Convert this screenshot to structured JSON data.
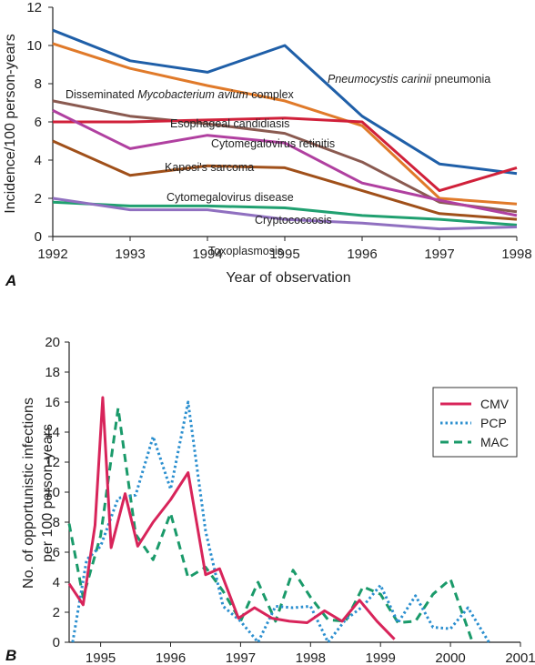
{
  "chart_data": [
    {
      "panel": "A",
      "type": "line",
      "xlabel": "Year of observation",
      "ylabel": "Incidence/100 person-years",
      "xlim": [
        1992,
        1998
      ],
      "ylim": [
        0,
        12
      ],
      "x": [
        1992,
        1993,
        1994,
        1995,
        1996,
        1997,
        1998
      ],
      "series": [
        {
          "name": "Pneumocystis carinii pneumonia",
          "color": "#1f5fa8",
          "values": [
            10.8,
            9.2,
            8.6,
            10.0,
            6.3,
            3.8,
            3.3
          ]
        },
        {
          "name": "Disseminated Mycobacterium avium complex",
          "color": "#e07a2a",
          "values": [
            10.1,
            8.8,
            7.9,
            7.1,
            5.8,
            2.0,
            1.7
          ]
        },
        {
          "name": "Esophageal candidiasis",
          "color": "#8a5a50",
          "values": [
            7.1,
            6.3,
            5.9,
            5.4,
            3.9,
            1.8,
            1.3
          ]
        },
        {
          "name": "Cytomegalovirus retinitis",
          "color": "#d0203a",
          "values": [
            6.0,
            6.0,
            6.1,
            6.2,
            6.0,
            2.4,
            3.6
          ]
        },
        {
          "name": "Kaposi's sarcoma",
          "color": "#b040a0",
          "values": [
            6.6,
            4.6,
            5.3,
            4.9,
            2.8,
            1.9,
            1.1
          ]
        },
        {
          "name": "Cytomegalovirus disease",
          "color": "#a0501a",
          "values": [
            5.0,
            3.2,
            3.7,
            3.6,
            2.4,
            1.2,
            0.9
          ]
        },
        {
          "name": "Cryptococcosis",
          "color": "#20a070",
          "values": [
            1.8,
            1.6,
            1.6,
            1.5,
            1.1,
            0.9,
            0.6
          ]
        },
        {
          "name": "Toxoplasmosis",
          "color": "#9070c0",
          "values": [
            2.0,
            1.4,
            1.4,
            0.9,
            0.7,
            0.4,
            0.5
          ]
        }
      ],
      "annotations": [
        {
          "text": "Pneumocystis carinii pneumonia",
          "italic_part": "Pneumocystis carinii"
        },
        {
          "text": "Disseminated Mycobacterium avium complex",
          "italic_part": "Mycobacterium avium"
        },
        {
          "text": "Esophageal candidiasis"
        },
        {
          "text": "Cytomegalovirus retinitis"
        },
        {
          "text": "Kaposi's sarcoma"
        },
        {
          "text": "Cytomegalovirus disease"
        },
        {
          "text": "Cryptococcosis"
        },
        {
          "text": "Toxoplasmosis"
        }
      ],
      "xticks": [
        "1992",
        "1993",
        "1994",
        "1995",
        "1996",
        "1997",
        "1998"
      ],
      "yticks": [
        "0",
        "2",
        "4",
        "6",
        "8",
        "10",
        "12"
      ],
      "grid": false
    },
    {
      "panel": "B",
      "type": "line",
      "xlabel": "",
      "ylabel_lines": [
        "No. of opportunistic infections",
        "per 100 person-years"
      ],
      "xlim": [
        1994.55,
        2001
      ],
      "ylim": [
        0,
        20
      ],
      "xticks": [
        "1995",
        "1996",
        "1997",
        "1998",
        "1999",
        "2000",
        "2001"
      ],
      "yticks": [
        "0",
        "2",
        "4",
        "6",
        "8",
        "10",
        "12",
        "14",
        "16",
        "18",
        "20"
      ],
      "legend_position": "top-right",
      "grid": false,
      "series": [
        {
          "name": "CMV",
          "color": "#d8245a",
          "style": "solid",
          "x": [
            1994.55,
            1994.75,
            1994.92,
            1995.03,
            1995.15,
            1995.35,
            1995.53,
            1995.75,
            1996.0,
            1996.25,
            1996.5,
            1996.7,
            1996.97,
            1997.2,
            1997.45,
            1997.7,
            1997.95,
            1998.2,
            1998.45,
            1998.7,
            1998.95,
            1999.2
          ],
          "values": [
            3.9,
            2.5,
            7.8,
            16.3,
            6.3,
            9.9,
            6.4,
            8.0,
            9.5,
            11.3,
            4.5,
            4.9,
            1.6,
            2.3,
            1.6,
            1.4,
            1.3,
            2.1,
            1.4,
            2.8,
            1.4,
            0.2
          ]
        },
        {
          "name": "PCP",
          "color": "#2b8fcf",
          "style": "dotted",
          "x": [
            1994.6,
            1994.8,
            1995.0,
            1995.25,
            1995.5,
            1995.75,
            1996.0,
            1996.25,
            1996.5,
            1996.75,
            1997.0,
            1997.25,
            1997.5,
            1997.75,
            1998.0,
            1998.25,
            1998.5,
            1998.75,
            1999.0,
            1999.25,
            1999.5,
            1999.75,
            2000.0,
            2000.25,
            2000.55
          ],
          "values": [
            0.0,
            5.5,
            6.4,
            9.6,
            9.8,
            13.7,
            10.2,
            16.0,
            7.4,
            2.4,
            1.4,
            0.0,
            2.4,
            2.3,
            2.4,
            0.0,
            1.5,
            2.4,
            3.8,
            1.3,
            3.1,
            1.0,
            0.9,
            2.3,
            0.0
          ]
        },
        {
          "name": "MAC",
          "color": "#1a9a6a",
          "style": "dashed",
          "x": [
            1994.55,
            1994.75,
            1995.0,
            1995.25,
            1995.5,
            1995.75,
            1996.0,
            1996.25,
            1996.5,
            1996.75,
            1997.0,
            1997.25,
            1997.5,
            1997.75,
            1998.0,
            1998.25,
            1998.5,
            1998.75,
            1999.0,
            1999.25,
            1999.5,
            1999.75,
            2000.0,
            2000.3
          ],
          "values": [
            7.9,
            3.0,
            7.1,
            15.6,
            7.2,
            5.5,
            8.6,
            4.3,
            5.0,
            3.4,
            1.4,
            4.0,
            1.4,
            4.8,
            3.0,
            1.5,
            1.4,
            3.7,
            3.2,
            1.3,
            1.4,
            3.2,
            4.2,
            0.2
          ]
        }
      ]
    }
  ],
  "panel_labels": {
    "a": "A",
    "b": "B"
  }
}
